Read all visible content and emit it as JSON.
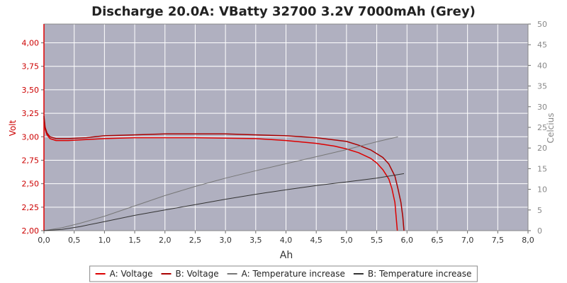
{
  "chart_data": {
    "type": "line",
    "title": "Discharge 20.0A: VBatty 32700 3.2V 7000mAh (Grey)",
    "xlabel": "Ah",
    "ylabel_left": "Volt",
    "ylabel_right": "Celcius",
    "xlim": [
      0,
      8
    ],
    "ylim_left": [
      2.0,
      4.2
    ],
    "ylim_right": [
      0,
      50
    ],
    "x_ticks": [
      "0,0",
      "0,5",
      "1,0",
      "1,5",
      "2,0",
      "2,5",
      "3,0",
      "3,5",
      "4,0",
      "4,5",
      "5,0",
      "5,5",
      "6,0",
      "6,5",
      "7,0",
      "7,5",
      "8,0"
    ],
    "y_left_ticks": [
      "2,00",
      "2,25",
      "2,50",
      "2,75",
      "3,00",
      "3,25",
      "3,50",
      "3,75",
      "4,00"
    ],
    "y_right_ticks": [
      "0",
      "5",
      "10",
      "15",
      "20",
      "25",
      "30",
      "35",
      "40",
      "45",
      "50"
    ],
    "grid": true,
    "legend_position": "bottom",
    "colors": {
      "plot_background": "#b0b0c0",
      "grid": "#ffffff",
      "voltage_a": "#dd0000",
      "voltage_b": "#aa0000",
      "temp_a": "#777777",
      "temp_b": "#333333",
      "left_axis_text": "#cc0000",
      "right_axis_text": "#888888"
    },
    "series": [
      {
        "name": "A: Voltage",
        "axis": "left",
        "x": [
          0,
          0.02,
          0.05,
          0.1,
          0.2,
          0.4,
          0.7,
          1.0,
          1.5,
          2.0,
          2.5,
          3.0,
          3.5,
          4.0,
          4.5,
          4.8,
          5.0,
          5.2,
          5.4,
          5.5,
          5.6,
          5.7,
          5.75,
          5.8,
          5.82,
          5.84
        ],
        "y": [
          3.2,
          3.08,
          3.02,
          2.98,
          2.96,
          2.96,
          2.97,
          2.98,
          2.99,
          2.99,
          2.99,
          2.985,
          2.98,
          2.96,
          2.93,
          2.9,
          2.87,
          2.83,
          2.77,
          2.72,
          2.65,
          2.55,
          2.45,
          2.3,
          2.15,
          2.0
        ]
      },
      {
        "name": "B: Voltage",
        "axis": "left",
        "x": [
          0,
          0.02,
          0.05,
          0.1,
          0.2,
          0.4,
          0.7,
          1.0,
          1.5,
          2.0,
          2.5,
          3.0,
          3.5,
          4.0,
          4.5,
          5.0,
          5.2,
          5.4,
          5.6,
          5.7,
          5.8,
          5.85,
          5.9,
          5.93,
          5.95
        ],
        "y": [
          3.22,
          3.1,
          3.04,
          3.0,
          2.98,
          2.98,
          2.99,
          3.01,
          3.02,
          3.03,
          3.03,
          3.03,
          3.02,
          3.01,
          2.99,
          2.95,
          2.91,
          2.86,
          2.78,
          2.71,
          2.58,
          2.45,
          2.3,
          2.15,
          2.0
        ]
      },
      {
        "name": "A: Temperature increase",
        "axis": "right",
        "x": [
          0,
          0.3,
          0.6,
          1.0,
          1.5,
          2.0,
          2.5,
          3.0,
          3.5,
          4.0,
          4.5,
          5.0,
          5.5,
          5.85
        ],
        "y": [
          0,
          0.7,
          1.8,
          3.5,
          6,
          8.5,
          10.7,
          12.7,
          14.5,
          16.2,
          17.9,
          19.6,
          21.5,
          22.7
        ]
      },
      {
        "name": "B: Temperature increase",
        "axis": "right",
        "x": [
          0,
          0.3,
          0.6,
          1.0,
          1.5,
          2.0,
          2.5,
          3.0,
          3.5,
          4.0,
          4.5,
          5.0,
          5.5,
          5.95
        ],
        "y": [
          0,
          0.3,
          1.0,
          2.2,
          3.7,
          5.0,
          6.3,
          7.6,
          8.8,
          9.9,
          10.9,
          11.8,
          12.7,
          13.8
        ]
      }
    ]
  }
}
